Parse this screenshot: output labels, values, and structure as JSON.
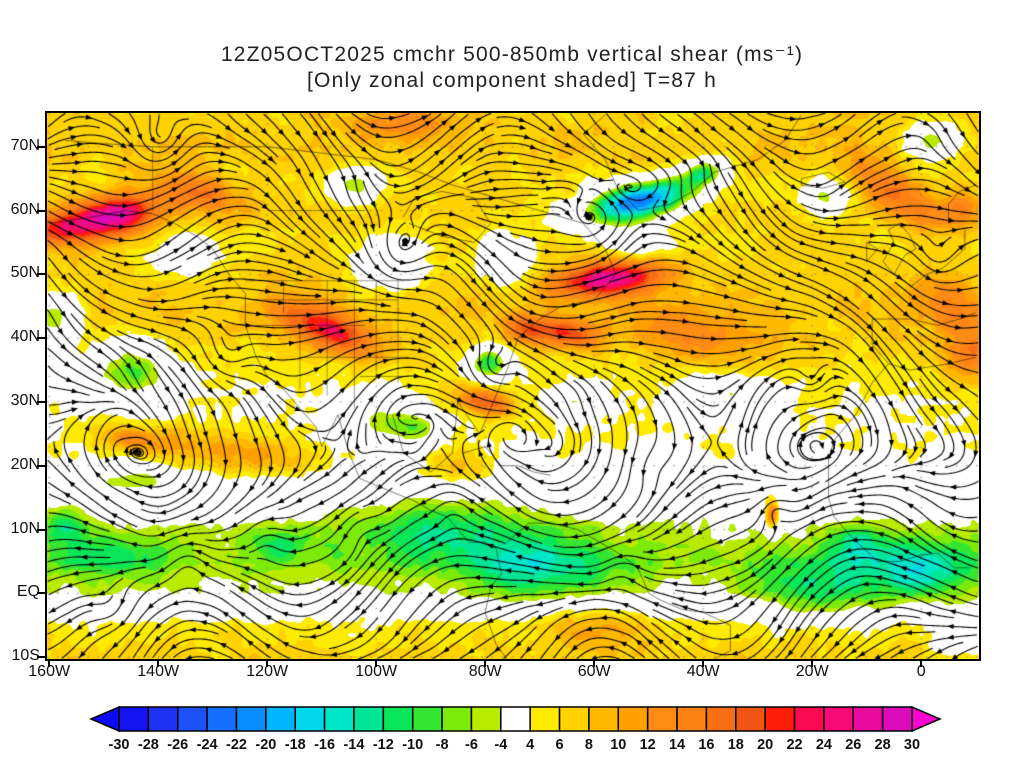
{
  "title": {
    "line1": "12Z05OCT2025 cmchr 500-850mb vertical shear (ms⁻¹)",
    "line2": "[Only zonal component shaded] T=87 h"
  },
  "chart_data": {
    "type": "heatmap",
    "title": "12Z05OCT2025 cmchr 500-850mb vertical shear (ms⁻¹)",
    "subtitle": "[Only zonal component shaded] T=87 h",
    "field_units": "ms⁻¹",
    "lon_range": [
      -160.4,
      10.6
    ],
    "lat_range": [
      -10.3,
      75.3
    ],
    "x_axis": {
      "ticks": [
        {
          "label": "160W",
          "lon": -160
        },
        {
          "label": "140W",
          "lon": -140
        },
        {
          "label": "120W",
          "lon": -120
        },
        {
          "label": "100W",
          "lon": -100
        },
        {
          "label": "80W",
          "lon": -80
        },
        {
          "label": "60W",
          "lon": -60
        },
        {
          "label": "40W",
          "lon": -40
        },
        {
          "label": "20W",
          "lon": -20
        },
        {
          "label": "0",
          "lon": 0
        }
      ]
    },
    "y_axis": {
      "ticks": [
        {
          "label": "70N",
          "lat": 70
        },
        {
          "label": "60N",
          "lat": 60
        },
        {
          "label": "50N",
          "lat": 50
        },
        {
          "label": "40N",
          "lat": 40
        },
        {
          "label": "30N",
          "lat": 30
        },
        {
          "label": "20N",
          "lat": 20
        },
        {
          "label": "10N",
          "lat": 10
        },
        {
          "label": "EQ",
          "lat": 0
        },
        {
          "label": "10S",
          "lat": -10
        }
      ]
    },
    "colorbar": {
      "levels": [
        -30,
        -28,
        -26,
        -24,
        -22,
        -20,
        -18,
        -16,
        -14,
        -12,
        -10,
        -8,
        -6,
        -4,
        4,
        6,
        8,
        10,
        12,
        14,
        16,
        18,
        20,
        22,
        24,
        26,
        28,
        30
      ],
      "labels": [
        "-30",
        "-28",
        "-26",
        "-24",
        "-22",
        "-20",
        "-18",
        "-16",
        "-14",
        "-12",
        "-10",
        "-8",
        "-6",
        "-4",
        "4",
        "6",
        "8",
        "10",
        "12",
        "14",
        "16",
        "18",
        "20",
        "22",
        "24",
        "26",
        "28",
        "30"
      ],
      "segment_colors": [
        "#1414f0",
        "#1e32f5",
        "#1e50fa",
        "#146eff",
        "#0a8cff",
        "#00b4ff",
        "#00d7eb",
        "#00e6c8",
        "#00e696",
        "#0ae65a",
        "#32e632",
        "#7deb0a",
        "#b9eb00",
        "#ffffff",
        "#ffeb00",
        "#ffd200",
        "#ffb900",
        "#ffa000",
        "#ff8c14",
        "#ff8214",
        "#fa6e14",
        "#f05514",
        "#ff1e0a",
        "#fa0a50",
        "#f50a78",
        "#eb0aa0",
        "#dc0ab9"
      ],
      "under_color": "#0a0af5",
      "over_color": "#ff00d2",
      "units": "ms⁻¹"
    },
    "approx_field": {
      "base_profile": {
        "lat": [
          -10,
          -5,
          0,
          5,
          10,
          15,
          20,
          25,
          30,
          35,
          40,
          45,
          50,
          55,
          60,
          65,
          70,
          75
        ],
        "u": [
          9,
          7,
          -1,
          -4,
          -2,
          2,
          5,
          6,
          6,
          7,
          9,
          10,
          9,
          8,
          9,
          8,
          10,
          9
        ]
      },
      "gaussians_lon_lat_sx_sy_amp_rotdeg": [
        [
          -149,
          59,
          9,
          3.2,
          22,
          8
        ],
        [
          -159,
          57,
          5,
          2.5,
          10,
          0
        ],
        [
          -132,
          63,
          8,
          3,
          9,
          -10
        ],
        [
          -109,
          41.5,
          9,
          3,
          16,
          -20
        ],
        [
          -57,
          49.5,
          10,
          2.6,
          21,
          5
        ],
        [
          -52,
          61.5,
          10,
          3,
          -30,
          10
        ],
        [
          -40,
          66,
          4,
          2,
          -14,
          15
        ],
        [
          -79.5,
          36.3,
          3.5,
          2.5,
          -16,
          0
        ],
        [
          -97,
          52,
          6,
          4,
          -9,
          0
        ],
        [
          -76,
          52,
          5,
          4,
          -8,
          0
        ],
        [
          -145,
          35,
          7,
          4.5,
          -13,
          0
        ],
        [
          -88,
          10,
          16,
          5,
          -8,
          0
        ],
        [
          -70,
          4,
          13,
          5,
          -9,
          0
        ],
        [
          -18,
          1,
          11,
          5,
          -9,
          0
        ],
        [
          -150,
          6,
          11,
          4,
          -5,
          0
        ],
        [
          -158,
          11,
          4,
          3,
          -8,
          0
        ],
        [
          -145,
          18,
          8,
          2.5,
          -7,
          0
        ],
        [
          -145,
          24.5,
          5,
          1.8,
          8,
          0
        ],
        [
          -135,
          23,
          12,
          3,
          7,
          0
        ],
        [
          -40,
          40,
          13,
          4.5,
          7,
          -10
        ],
        [
          -5,
          63,
          9,
          3.5,
          10,
          -30
        ],
        [
          7,
          60,
          4,
          3,
          8,
          0
        ],
        [
          -27.5,
          12.5,
          1.3,
          2.4,
          18,
          0
        ],
        [
          -100,
          27,
          7,
          3.5,
          -8,
          0
        ],
        [
          -35,
          31,
          8,
          3.5,
          -8,
          0
        ],
        [
          0,
          4,
          9,
          4.5,
          -10,
          0
        ],
        [
          -12,
          8,
          5,
          3,
          -8,
          0
        ],
        [
          -63,
          30,
          5,
          2.5,
          -7,
          0
        ],
        [
          -136,
          53,
          6,
          3.5,
          -6,
          0
        ],
        [
          -159,
          43,
          5,
          4,
          -13,
          0
        ],
        [
          -160,
          35,
          3,
          3,
          -7,
          0
        ],
        [
          -118,
          8,
          5,
          2.5,
          -6,
          0
        ],
        [
          2,
          71,
          5,
          2.5,
          -13,
          0
        ],
        [
          -18,
          62,
          4,
          2.5,
          -11,
          0
        ],
        [
          -73,
          41.5,
          4,
          2,
          11,
          -10
        ],
        [
          -95,
          74,
          10,
          2.5,
          7,
          0
        ],
        [
          -80,
          30,
          5,
          2.2,
          15,
          -12
        ],
        [
          -65,
          41,
          6,
          2.2,
          13,
          -8
        ],
        [
          -104,
          64,
          4,
          2.5,
          -12,
          0
        ],
        [
          -93,
          26,
          5,
          2.5,
          -9,
          0
        ],
        [
          -85,
          20,
          6,
          3,
          6,
          0
        ],
        [
          5,
          45,
          7,
          4,
          7,
          -20
        ],
        [
          -60,
          -5,
          10,
          4,
          5,
          0
        ],
        [
          -120,
          21,
          10,
          3,
          6,
          0
        ],
        [
          9,
          37,
          5,
          4,
          9,
          0
        ],
        [
          8,
          -6,
          6,
          4,
          -6,
          0
        ],
        [
          -52,
          55,
          5,
          2.5,
          -8,
          0
        ]
      ]
    },
    "approx_flow": {
      "u_profile": {
        "lat": [
          -10,
          -5,
          0,
          5,
          10,
          15,
          20,
          25,
          30,
          35,
          40,
          45,
          50,
          55,
          60,
          65,
          70,
          75
        ],
        "u": [
          -5,
          -5,
          -6,
          -8,
          -7,
          -5,
          -2,
          2,
          5,
          7,
          9,
          10,
          9,
          8,
          7,
          6,
          7,
          6
        ]
      },
      "vortices_lon_lat_r_s": [
        [
          -78.5,
          36,
          3.5,
          14
        ],
        [
          -96,
          53,
          6,
          12
        ],
        [
          -128,
          37,
          4.5,
          10
        ],
        [
          -120,
          9,
          3.5,
          8
        ],
        [
          -103,
          10,
          3.5,
          8
        ],
        [
          -86,
          13,
          3.5,
          7
        ],
        [
          -60,
          58,
          5,
          10
        ],
        [
          -20,
          33,
          3.5,
          8
        ],
        [
          -27,
          12.5,
          3,
          9
        ],
        [
          -140,
          70,
          5,
          9
        ],
        [
          -50,
          20,
          3.5,
          6
        ],
        [
          -148,
          -3,
          4.5,
          -8
        ],
        [
          -75,
          25,
          3.5,
          -6
        ],
        [
          3,
          52,
          4,
          8
        ],
        [
          -135,
          6,
          4,
          7
        ],
        [
          -55,
          5,
          4,
          6
        ]
      ],
      "waves_amp_klon_klat_phase": [
        [
          4.5,
          0.09,
          0.12,
          0.6
        ],
        [
          3.0,
          0.16,
          -0.07,
          2.0
        ]
      ]
    }
  }
}
